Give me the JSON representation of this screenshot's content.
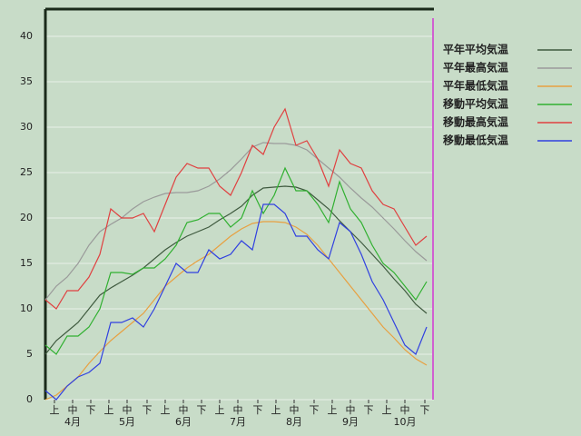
{
  "chart_data": {
    "type": "line",
    "x": [
      0,
      6,
      12,
      18,
      24,
      30,
      36,
      42,
      48,
      54,
      60,
      66,
      72,
      78,
      84,
      90,
      96,
      102,
      108,
      114,
      120,
      126,
      132,
      138,
      144,
      150,
      156,
      162,
      168,
      174,
      180,
      186,
      192,
      198,
      204,
      210
    ],
    "xlim": [
      0,
      214
    ],
    "xticks": [
      {
        "value": 5,
        "label": "上"
      },
      {
        "value": 15,
        "label": "中"
      },
      {
        "value": 25,
        "label": "下"
      },
      {
        "value": 35,
        "label": "上"
      },
      {
        "value": 45,
        "label": "中"
      },
      {
        "value": 56,
        "label": "下"
      },
      {
        "value": 66,
        "label": "上"
      },
      {
        "value": 76,
        "label": "中"
      },
      {
        "value": 86,
        "label": "下"
      },
      {
        "value": 96,
        "label": "上"
      },
      {
        "value": 106,
        "label": "中"
      },
      {
        "value": 117,
        "label": "下"
      },
      {
        "value": 127,
        "label": "上"
      },
      {
        "value": 137,
        "label": "中"
      },
      {
        "value": 148,
        "label": "下"
      },
      {
        "value": 158,
        "label": "上"
      },
      {
        "value": 168,
        "label": "中"
      },
      {
        "value": 178,
        "label": "下"
      },
      {
        "value": 188,
        "label": "上"
      },
      {
        "value": 198,
        "label": "中"
      },
      {
        "value": 209,
        "label": "下"
      }
    ],
    "month_ticks": [
      {
        "value": 15,
        "label": "4月"
      },
      {
        "value": 45,
        "label": "5月"
      },
      {
        "value": 76,
        "label": "6月"
      },
      {
        "value": 106,
        "label": "7月"
      },
      {
        "value": 137,
        "label": "8月"
      },
      {
        "value": 168,
        "label": "9月"
      },
      {
        "value": 198,
        "label": "10月"
      }
    ],
    "ylim": [
      0,
      43
    ],
    "yticks": [
      0,
      5,
      10,
      15,
      20,
      25,
      30,
      35,
      40
    ],
    "grid": true,
    "legend": "upper right",
    "series": [
      {
        "name": "平年平均気温",
        "color": "#3f5a3f",
        "values": [
          5,
          6.5,
          7.5,
          8.5,
          10,
          11.5,
          12.3,
          13,
          13.7,
          14.5,
          15.5,
          16.5,
          17.3,
          18,
          18.5,
          19,
          19.8,
          20.5,
          21.3,
          22.5,
          23.3,
          23.4,
          23.5,
          23.4,
          23,
          22,
          21,
          19.7,
          18.5,
          17.3,
          16,
          14.7,
          13.3,
          12,
          10.5,
          9.5
        ]
      },
      {
        "name": "平年最高気温",
        "color": "#9a9a9a",
        "values": [
          11,
          12.5,
          13.5,
          15,
          17,
          18.5,
          19.3,
          20,
          21,
          21.8,
          22.3,
          22.7,
          22.8,
          22.8,
          23,
          23.5,
          24.3,
          25.3,
          26.5,
          27.8,
          28.3,
          28.2,
          28.2,
          28,
          27.5,
          26.5,
          25.5,
          24.5,
          23.3,
          22.2,
          21.2,
          20,
          18.8,
          17.5,
          16.3,
          15.3
        ]
      },
      {
        "name": "平年最低気温",
        "color": "#e8a040",
        "values": [
          0,
          0.5,
          1.5,
          2.5,
          4,
          5.3,
          6.5,
          7.5,
          8.5,
          9.5,
          11,
          12.5,
          13.5,
          14.5,
          15.3,
          16,
          17,
          18,
          18.8,
          19.4,
          19.6,
          19.6,
          19.5,
          19,
          18.2,
          17,
          15.5,
          14,
          12.5,
          11,
          9.5,
          8,
          6.8,
          5.5,
          4.5,
          3.8
        ]
      },
      {
        "name": "移動平均気温",
        "color": "#30b030",
        "values": [
          6,
          5,
          7,
          7,
          8,
          10,
          14,
          14,
          13.8,
          14.5,
          14.5,
          15.5,
          17,
          19.5,
          19.8,
          20.5,
          20.5,
          19,
          20,
          23,
          20.5,
          22.5,
          25.5,
          23,
          23,
          21.5,
          19.5,
          24,
          21,
          19.5,
          17,
          15,
          14,
          12.5,
          11,
          13
        ]
      },
      {
        "name": "移動最高気温",
        "color": "#e04040",
        "values": [
          11,
          10,
          12,
          12,
          13.5,
          16,
          21,
          20,
          20,
          20.5,
          18.5,
          21.5,
          24.5,
          26,
          25.5,
          25.5,
          23.5,
          22.5,
          25,
          28,
          27,
          30,
          32,
          28,
          28.5,
          26.5,
          23.5,
          27.5,
          26,
          25.5,
          23,
          21.5,
          21,
          19,
          17,
          18
        ]
      },
      {
        "name": "移動最低気温",
        "color": "#3040e0",
        "values": [
          1,
          0,
          1.5,
          2.5,
          3,
          4,
          8.5,
          8.5,
          9,
          8,
          10,
          12.5,
          15,
          14,
          14,
          16.5,
          15.5,
          16,
          17.5,
          16.5,
          21.5,
          21.5,
          20.5,
          18,
          18,
          16.5,
          15.5,
          19.5,
          18.5,
          16,
          13,
          11,
          8.5,
          6,
          5,
          8
        ]
      }
    ]
  }
}
